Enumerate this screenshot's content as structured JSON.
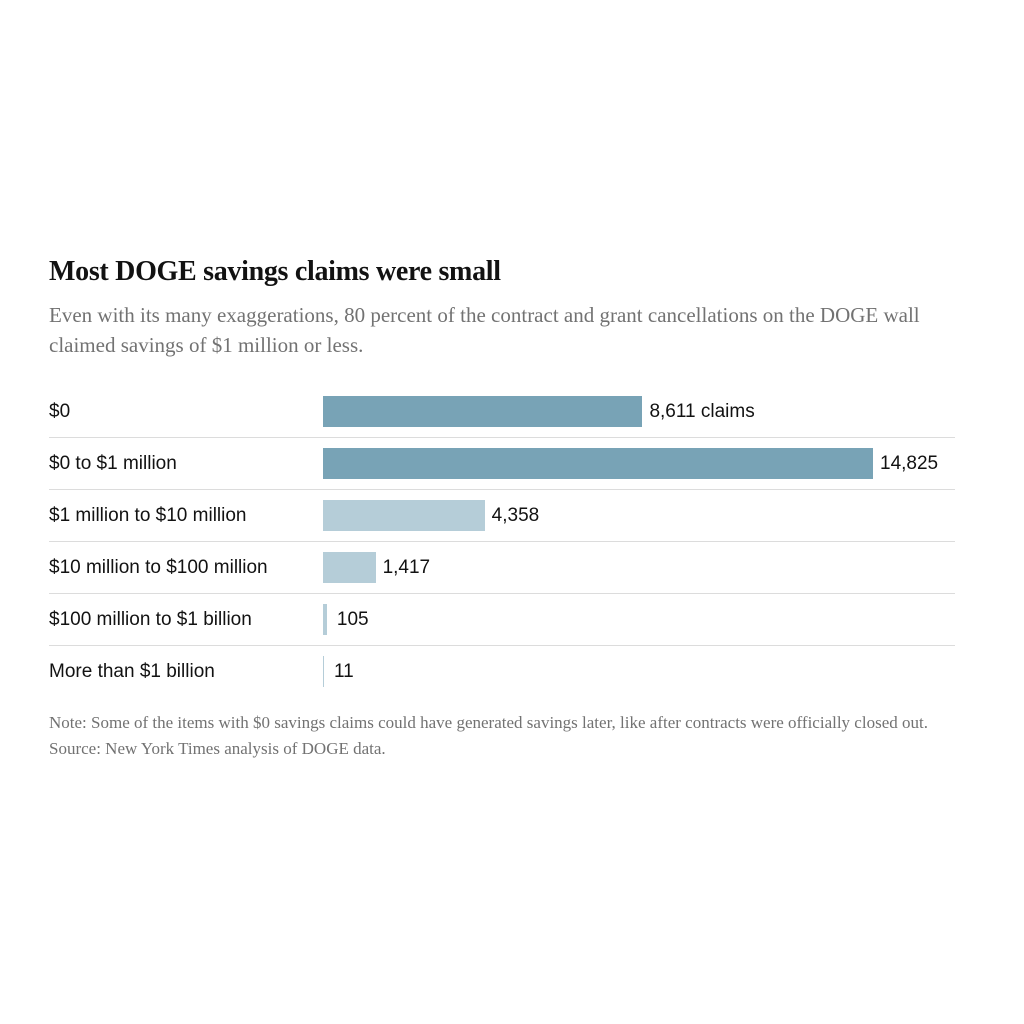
{
  "title": "Most DOGE savings claims were small",
  "subtitle": "Even with its many exaggerations, 80 percent of the contract and grant cancellations on the DOGE wall claimed savings of $1 million or less.",
  "note": "Note: Some of the items with $0 savings claims could have generated savings later, like after contracts were officially closed out. Source: New York Times analysis of DOGE data.",
  "colors": {
    "dark": "#78a3b6",
    "light": "#b5cdd8"
  },
  "chart_data": {
    "type": "bar",
    "orientation": "horizontal",
    "title": "Most DOGE savings claims were small",
    "xlabel": "",
    "ylabel": "",
    "xlim": [
      0,
      14825
    ],
    "grid": false,
    "categories": [
      "$0",
      "$0 to $1 million",
      "$1 million to $10 million",
      "$10 million to $100 million",
      "$100 million to $1 billion",
      "More than $1 billion"
    ],
    "values": [
      8611,
      14825,
      4358,
      1417,
      105,
      11
    ],
    "value_labels": [
      "8,611 claims",
      "14,825",
      "4,358",
      "1,417",
      "105",
      "11"
    ],
    "bar_colors": [
      "dark",
      "dark",
      "light",
      "light",
      "light",
      "light"
    ]
  }
}
